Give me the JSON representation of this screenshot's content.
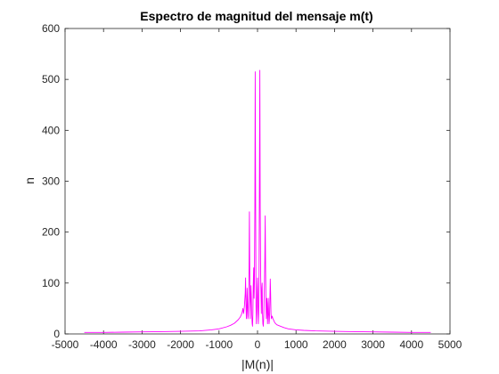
{
  "chart_data": {
    "type": "line",
    "title": "Espectro de magnitud del mensaje m(t)",
    "xlabel": "|M(n)|",
    "ylabel": "n",
    "xlim": [
      -5000,
      5000
    ],
    "ylim": [
      0,
      600
    ],
    "xticks": [
      "-5000",
      "-4000",
      "-3000",
      "-2000",
      "-1000",
      "0",
      "1000",
      "2000",
      "3000",
      "4000",
      "5000"
    ],
    "yticks": [
      "0",
      "100",
      "200",
      "300",
      "400",
      "500",
      "600"
    ],
    "grid": false,
    "series": [
      {
        "color": "#ff00ff",
        "x": [
          -4500,
          -4000,
          -3500,
          -3000,
          -2500,
          -2000,
          -1500,
          -1200,
          -1000,
          -800,
          -700,
          -600,
          -500,
          -450,
          -420,
          -400,
          -380,
          -360,
          -340,
          -320,
          -310,
          -300,
          -290,
          -280,
          -270,
          -260,
          -250,
          -240,
          -230,
          -220,
          -210,
          -200,
          -190,
          -180,
          -170,
          -160,
          -150,
          -140,
          -130,
          -120,
          -110,
          -100,
          -90,
          -80,
          -70,
          -60,
          -50,
          -40,
          -30,
          -20,
          -10,
          0,
          10,
          20,
          30,
          40,
          50,
          60,
          70,
          80,
          90,
          100,
          110,
          120,
          130,
          140,
          150,
          160,
          170,
          180,
          190,
          200,
          210,
          220,
          230,
          240,
          250,
          260,
          270,
          280,
          290,
          300,
          310,
          320,
          330,
          340,
          350,
          360,
          380,
          400,
          420,
          450,
          500,
          600,
          700,
          800,
          1000,
          1200,
          1500,
          2000,
          2500,
          3000,
          3500,
          4000,
          4500
        ],
        "y": [
          3,
          3,
          3.5,
          4,
          4.5,
          5,
          6,
          8,
          10,
          14,
          17,
          21,
          28,
          33,
          38,
          42,
          50,
          40,
          55,
          80,
          110,
          60,
          30,
          45,
          90,
          60,
          30,
          35,
          80,
          130,
          240,
          100,
          30,
          60,
          95,
          70,
          40,
          20,
          15,
          40,
          95,
          130,
          70,
          100,
          250,
          515,
          300,
          60,
          20,
          40,
          90,
          110,
          60,
          20,
          40,
          100,
          330,
          518,
          250,
          120,
          80,
          40,
          90,
          100,
          40,
          20,
          15,
          30,
          60,
          100,
          150,
          232,
          120,
          60,
          30,
          70,
          60,
          20,
          40,
          70,
          40,
          20,
          30,
          60,
          108,
          80,
          40,
          30,
          35,
          30,
          27,
          22,
          18,
          15,
          12,
          10,
          8,
          7,
          6,
          5,
          4.5,
          4,
          3.5,
          3,
          3
        ]
      }
    ]
  }
}
